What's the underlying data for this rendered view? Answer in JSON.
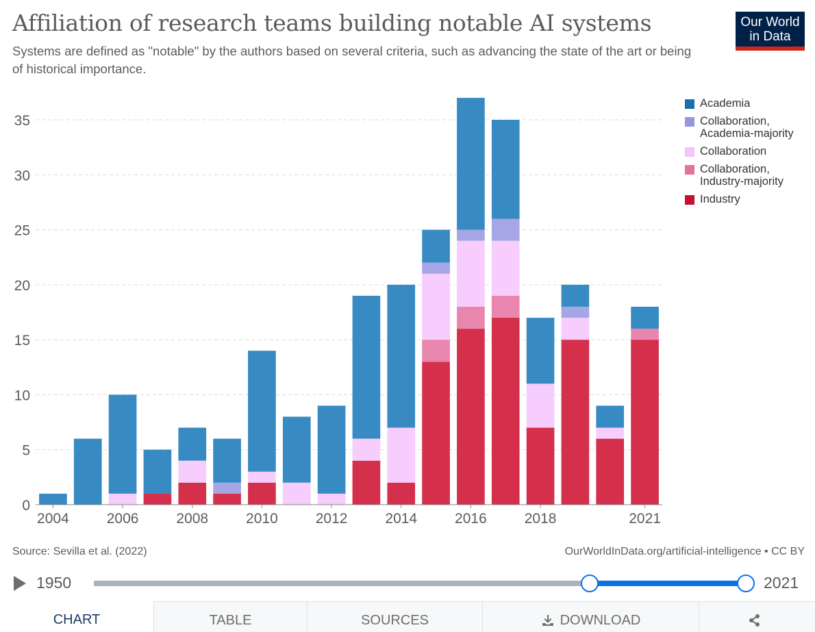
{
  "header": {
    "title": "Affiliation of research teams building notable AI systems",
    "subtitle": "Systems are defined as \"notable\" by the authors based on several criteria, such as advancing the state of the art or being of historical importance.",
    "logo_line1": "Our World",
    "logo_line2": "in Data"
  },
  "chart_data": {
    "type": "bar",
    "stacked": true,
    "title": "Affiliation of research teams building notable AI systems",
    "xlabel": "",
    "ylabel": "",
    "ylim": [
      0,
      37
    ],
    "yticks": [
      0,
      5,
      10,
      15,
      20,
      25,
      30,
      35
    ],
    "grid": "horizontal-dashed",
    "legend_position": "right",
    "categories": [
      2004,
      2005,
      2006,
      2007,
      2008,
      2009,
      2010,
      2011,
      2012,
      2013,
      2014,
      2015,
      2016,
      2017,
      2018,
      2019,
      2020,
      2021
    ],
    "xtick_labels": [
      "2004",
      "2006",
      "2008",
      "2010",
      "2012",
      "2014",
      "2016",
      "2018",
      "2021"
    ],
    "series": [
      {
        "name": "Industry",
        "color": "#d42f4b",
        "values": [
          0,
          0,
          0,
          1,
          2,
          1,
          2,
          0,
          0,
          4,
          2,
          13,
          16,
          17,
          7,
          15,
          6,
          15
        ]
      },
      {
        "name": "Collaboration, Industry-majority",
        "color": "#e986ae",
        "values": [
          0,
          0,
          0,
          0,
          0,
          0,
          0,
          0,
          0,
          0,
          0,
          2,
          2,
          2,
          0,
          0,
          0,
          1
        ]
      },
      {
        "name": "Collaboration",
        "color": "#f6cdfc",
        "values": [
          0,
          0,
          1,
          0,
          2,
          0,
          1,
          2,
          1,
          2,
          5,
          6,
          6,
          5,
          4,
          2,
          1,
          0
        ]
      },
      {
        "name": "Collaboration, Academia-majority",
        "color": "#a6a6e6",
        "values": [
          0,
          0,
          0,
          0,
          0,
          1,
          0,
          0,
          0,
          0,
          0,
          1,
          1,
          2,
          0,
          1,
          0,
          0
        ]
      },
      {
        "name": "Academia",
        "color": "#388bc2",
        "values": [
          1,
          6,
          9,
          4,
          3,
          4,
          11,
          6,
          8,
          13,
          13,
          3,
          12,
          9,
          6,
          2,
          2,
          2
        ]
      }
    ]
  },
  "legend": [
    {
      "label": "Academia",
      "color": "#1a6fae"
    },
    {
      "label": "Collaboration,\nAcademia-majority",
      "color": "#9797e0"
    },
    {
      "label": "Collaboration",
      "color": "#f4c4fb"
    },
    {
      "label": "Collaboration,\nIndustry-majority",
      "color": "#e2729e"
    },
    {
      "label": "Industry",
      "color": "#c8102e"
    }
  ],
  "footer": {
    "source": "Source: Sevilla et al. (2022)",
    "url": "OurWorldInData.org/artificial-intelligence • CC BY"
  },
  "timeline": {
    "start_label": "1950",
    "end_label": "2021",
    "min_year": 1950,
    "max_year": 2021,
    "selected_start": 2004,
    "selected_end": 2021
  },
  "tabs": [
    {
      "label": "CHART",
      "active": true
    },
    {
      "label": "TABLE",
      "active": false
    },
    {
      "label": "SOURCES",
      "active": false
    },
    {
      "label": "DOWNLOAD",
      "active": false
    },
    {
      "label": "",
      "active": false
    }
  ]
}
